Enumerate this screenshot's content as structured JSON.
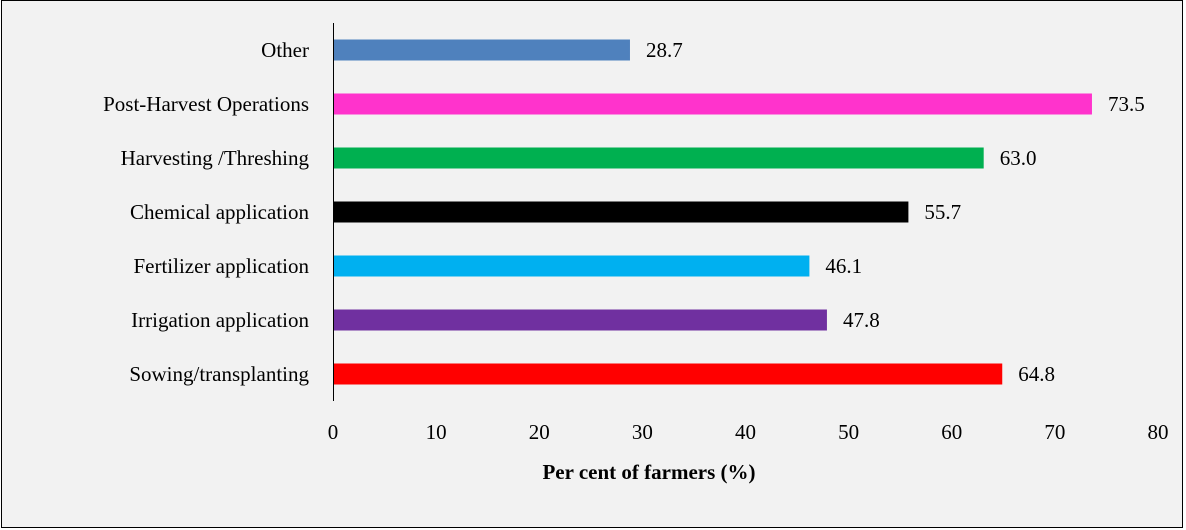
{
  "chart_data": {
    "type": "bar",
    "orientation": "horizontal",
    "title": "",
    "xlabel": "Per cent of farmers (%)",
    "ylabel": "",
    "xlim": [
      0,
      80
    ],
    "xticks": [
      "0",
      "10",
      "20",
      "30",
      "40",
      "50",
      "60",
      "70",
      "80"
    ],
    "grid": false,
    "legend": "none",
    "categories": [
      "Other",
      "Post-Harvest Operations",
      "Harvesting /Threshing",
      "Chemical application",
      "Fertilizer application",
      "Irrigation application",
      "Sowing/transplanting"
    ],
    "values": [
      28.7,
      73.5,
      63.0,
      55.7,
      46.1,
      47.8,
      64.8
    ],
    "value_labels": [
      "28.7",
      "73.5",
      "63.0",
      "55.7",
      "46.1",
      "47.8",
      "64.8"
    ],
    "colors": [
      "#4f81bd",
      "#ff33cc",
      "#00b050",
      "#000000",
      "#00b0f0",
      "#7030a0",
      "#ff0000"
    ],
    "background": "#f2f2f2"
  }
}
